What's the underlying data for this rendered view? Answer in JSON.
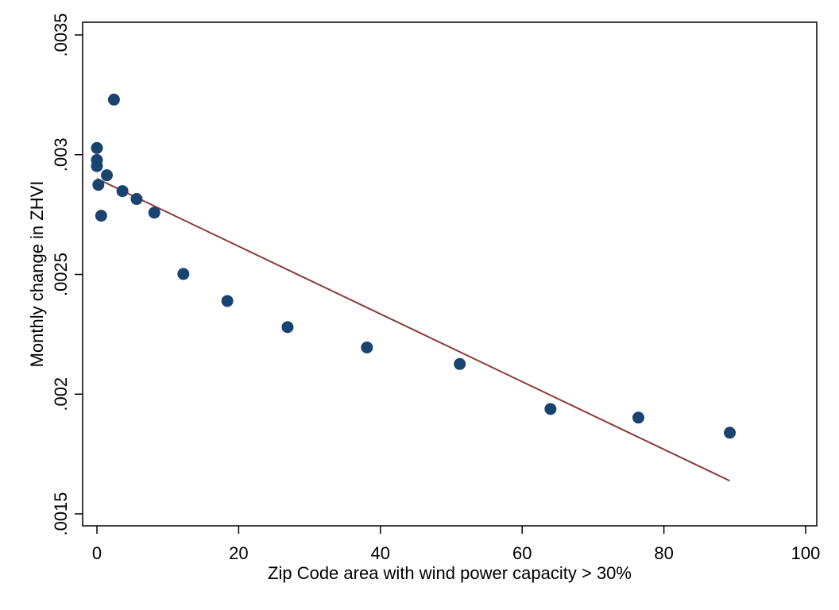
{
  "chart_data": {
    "type": "scatter",
    "xlabel": "Zip Code area with wind power capacity > 30%",
    "ylabel": "Monthly change in ZHVI",
    "xlim": [
      -2,
      100
    ],
    "ylim": [
      0.0015,
      0.0035
    ],
    "x_ticks": [
      {
        "value": 0,
        "label": "0"
      },
      {
        "value": 20,
        "label": "20"
      },
      {
        "value": 40,
        "label": "40"
      },
      {
        "value": 60,
        "label": "60"
      },
      {
        "value": 80,
        "label": "80"
      },
      {
        "value": 100,
        "label": "100"
      }
    ],
    "y_ticks": [
      {
        "value": 0.0015,
        "label": ".0015"
      },
      {
        "value": 0.002,
        "label": ".002"
      },
      {
        "value": 0.0025,
        "label": ".0025"
      },
      {
        "value": 0.003,
        "label": ".003"
      },
      {
        "value": 0.0035,
        "label": ".0035"
      }
    ],
    "grid": false,
    "series": [
      {
        "kind": "points",
        "color": "#1a4470",
        "points": [
          {
            "x": 2.4,
            "y": 0.00323
          },
          {
            "x": 0.0,
            "y": 0.003028
          },
          {
            "x": 0.0,
            "y": 0.002978
          },
          {
            "x": 0.0,
            "y": 0.002952
          },
          {
            "x": 1.4,
            "y": 0.002914
          },
          {
            "x": 0.2,
            "y": 0.002874
          },
          {
            "x": 3.6,
            "y": 0.002848
          },
          {
            "x": 5.6,
            "y": 0.002815
          },
          {
            "x": 8.1,
            "y": 0.002758
          },
          {
            "x": 0.6,
            "y": 0.002745
          },
          {
            "x": 12.2,
            "y": 0.002502
          },
          {
            "x": 18.4,
            "y": 0.002389
          },
          {
            "x": 26.9,
            "y": 0.00228
          },
          {
            "x": 38.1,
            "y": 0.002195
          },
          {
            "x": 51.2,
            "y": 0.002126
          },
          {
            "x": 64.0,
            "y": 0.001938
          },
          {
            "x": 76.4,
            "y": 0.001902
          },
          {
            "x": 89.3,
            "y": 0.001839
          }
        ]
      },
      {
        "kind": "fit-line",
        "color": "#8b3a3a",
        "points": [
          {
            "x": 0.0,
            "y": 0.0029
          },
          {
            "x": 89.3,
            "y": 0.001638
          }
        ]
      }
    ]
  }
}
